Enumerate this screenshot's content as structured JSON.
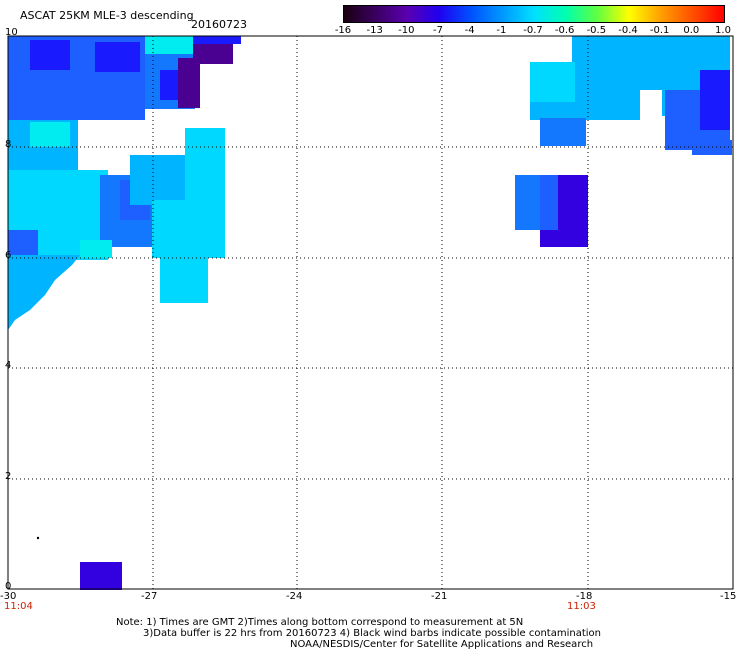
{
  "header": {
    "title": "ASCAT 25KM MLE-3 descending",
    "date": "20160723"
  },
  "colorbar": {
    "labels": [
      "-16",
      "-13",
      "-10",
      "-7",
      "-4",
      "-1",
      "-0.7",
      "-0.6",
      "-0.5",
      "-0.4",
      "-0.1",
      "0.0",
      "1.0"
    ],
    "colors": [
      "#1a0010",
      "#3a0060",
      "#5a00b0",
      "#2000f0",
      "#0050ff",
      "#0098ff",
      "#00e0ff",
      "#00ffb0",
      "#60ff40",
      "#ffff00",
      "#ffa000",
      "#ff5000",
      "#ff0000"
    ]
  },
  "axes": {
    "x_ticks": [
      "-30",
      "-27",
      "-24",
      "-21",
      "-18",
      "-15"
    ],
    "y_ticks": [
      "10",
      "8",
      "6",
      "4",
      "2",
      "0"
    ],
    "x_range": [
      -30,
      -15
    ],
    "y_range": [
      0,
      10
    ],
    "grid": "dotted"
  },
  "times": {
    "left": "11:04",
    "right": "11:03"
  },
  "swath_colors": {
    "dark_blue": "#1a1aff",
    "blue": "#1e5fff",
    "mid_blue": "#1478ff",
    "light_blue": "#00b4ff",
    "cyan": "#00d8ff",
    "aqua": "#00ecf0",
    "indigo": "#3300e0",
    "purple": "#4a0090"
  },
  "notes": {
    "line1": "Note: 1) Times are GMT 2)Times along bottom correspond to measurement at 5N",
    "line2": "3)Data buffer is 22 hrs from 20160723 4) Black wind barbs indicate possible contamination",
    "line3": "NOAA/NESDIS/Center for Satellite Applications and Research"
  }
}
